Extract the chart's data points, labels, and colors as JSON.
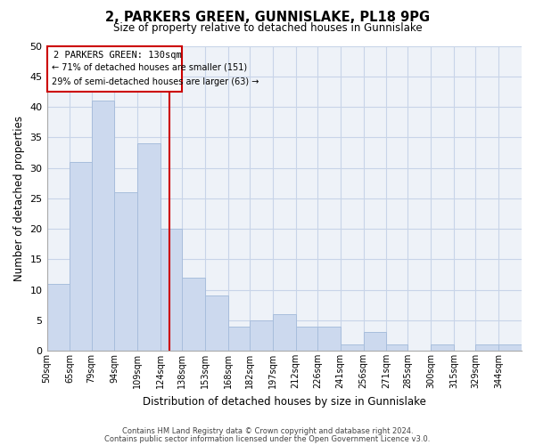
{
  "title": "2, PARKERS GREEN, GUNNISLAKE, PL18 9PG",
  "subtitle": "Size of property relative to detached houses in Gunnislake",
  "xlabel": "Distribution of detached houses by size in Gunnislake",
  "ylabel": "Number of detached properties",
  "bar_labels": [
    "50sqm",
    "65sqm",
    "79sqm",
    "94sqm",
    "109sqm",
    "124sqm",
    "138sqm",
    "153sqm",
    "168sqm",
    "182sqm",
    "197sqm",
    "212sqm",
    "226sqm",
    "241sqm",
    "256sqm",
    "271sqm",
    "285sqm",
    "300sqm",
    "315sqm",
    "329sqm",
    "344sqm"
  ],
  "bar_values": [
    11,
    31,
    41,
    26,
    34,
    20,
    12,
    9,
    4,
    5,
    6,
    4,
    4,
    1,
    3,
    1,
    0,
    1,
    0,
    1,
    1
  ],
  "bar_color": "#ccd9ee",
  "bar_edge_color": "#a8bedc",
  "bg_color": "#eef2f8",
  "ylim": [
    0,
    50
  ],
  "yticks": [
    0,
    5,
    10,
    15,
    20,
    25,
    30,
    35,
    40,
    45,
    50
  ],
  "property_line_x": 130,
  "property_line_label": "2 PARKERS GREEN: 130sqm",
  "annotation_line1": "← 71% of detached houses are smaller (151)",
  "annotation_line2": "29% of semi-detached houses are larger (63) →",
  "annotation_box_color": "#ffffff",
  "annotation_box_edge": "#cc0000",
  "property_line_color": "#cc0000",
  "grid_color": "#c8d4e8",
  "footer_line1": "Contains HM Land Registry data © Crown copyright and database right 2024.",
  "footer_line2": "Contains public sector information licensed under the Open Government Licence v3.0.",
  "bin_edges": [
    50,
    65,
    79,
    94,
    109,
    124,
    138,
    153,
    168,
    182,
    197,
    212,
    226,
    241,
    256,
    271,
    285,
    300,
    315,
    329,
    344,
    359
  ]
}
